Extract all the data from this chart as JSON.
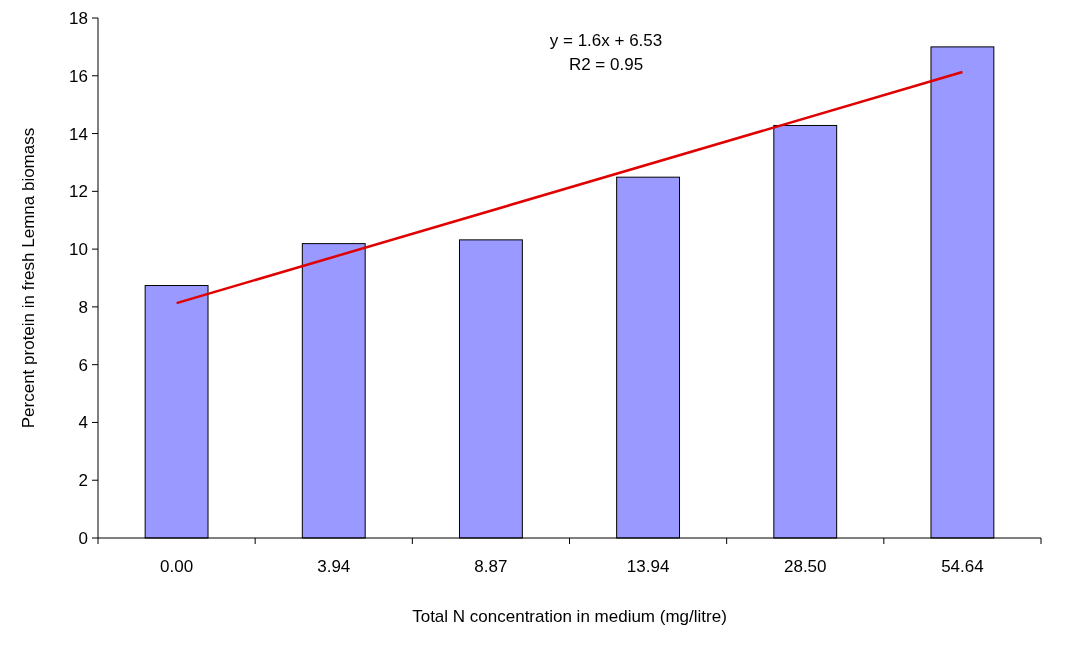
{
  "chart_data": {
    "type": "bar",
    "xlabel": "Total N concentration in medium (mg/litre)",
    "ylabel": "Percent protein in fresh Lemna biomass",
    "categories": [
      "0.00",
      "3.94",
      "8.87",
      "13.94",
      "28.50",
      "54.64"
    ],
    "series": [
      {
        "color": "#9999ff",
        "values": [
          8.74,
          10.19,
          10.32,
          12.49,
          14.28,
          17.0
        ]
      },
      {
        "type": "line",
        "color": "#e00000",
        "x": [
          "0.00",
          "54.64"
        ],
        "values": [
          8.13,
          16.13
        ]
      }
    ],
    "annotations": [
      "y = 1.6x + 6.53",
      "R2 = 0.95"
    ],
    "ylim": [
      0,
      18
    ],
    "yticks": [
      0,
      2,
      4,
      6,
      8,
      10,
      12,
      14,
      16,
      18
    ],
    "grid": false
  }
}
